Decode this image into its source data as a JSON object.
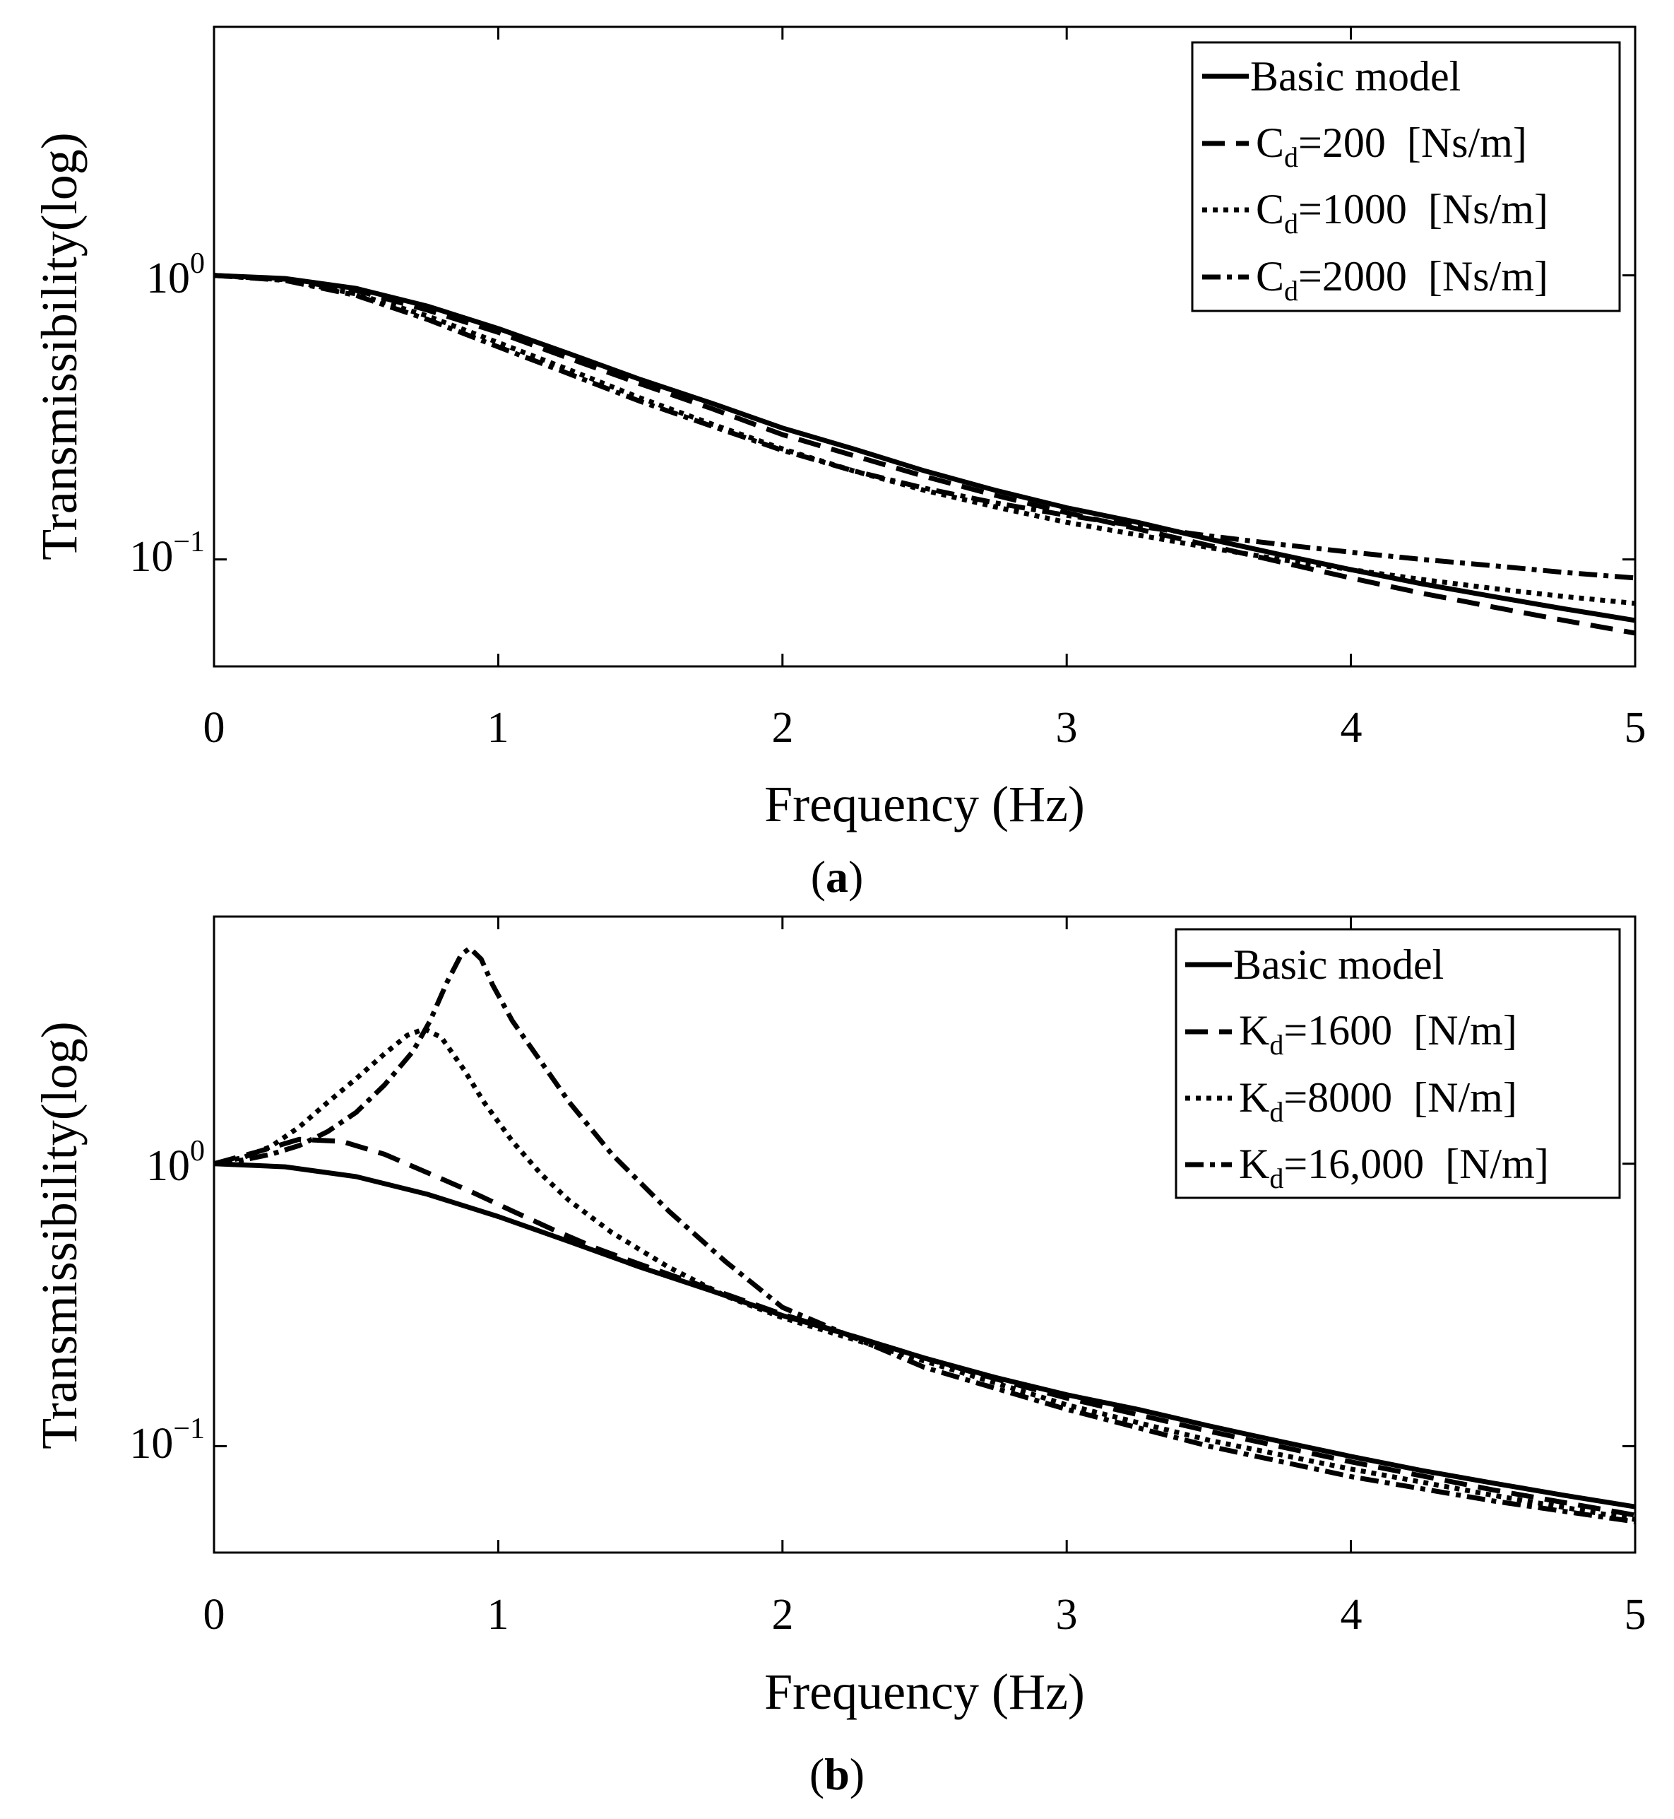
{
  "chart_data": [
    {
      "type": "line",
      "panel": "a",
      "caption": {
        "open": "(",
        "letter": "a",
        "close": ")"
      },
      "xlabel": "Frequency (Hz)",
      "ylabel": "Transmissibility(log)",
      "xlim": [
        0,
        5
      ],
      "ylim": [
        0.042,
        7.5
      ],
      "yscale": "log",
      "xticks": [
        0,
        1,
        2,
        3,
        4,
        5
      ],
      "xtick_labels": [
        "0",
        "1",
        "2",
        "3",
        "4",
        "5"
      ],
      "yticks": [
        {
          "value": 1,
          "base": "10",
          "exp": "0"
        },
        {
          "value": 0.1,
          "base": "10",
          "exp": "−1"
        }
      ],
      "legend_position": "top-right",
      "series": [
        {
          "name": "Basic model",
          "legend": {
            "text": "Basic model"
          },
          "style": "solid",
          "x": [
            0,
            0.25,
            0.5,
            0.75,
            1,
            1.25,
            1.5,
            1.75,
            2,
            2.25,
            2.5,
            2.75,
            3,
            3.25,
            3.5,
            3.75,
            4,
            4.25,
            4.5,
            4.75,
            5
          ],
          "y": [
            1.0,
            0.975,
            0.9,
            0.78,
            0.65,
            0.53,
            0.43,
            0.355,
            0.29,
            0.245,
            0.205,
            0.175,
            0.152,
            0.135,
            0.118,
            0.104,
            0.092,
            0.082,
            0.074,
            0.067,
            0.061
          ]
        },
        {
          "name": "Cd=200 [Ns/m]",
          "legend": {
            "sym": "C",
            "sub": "d",
            "rest": "=200  [Ns/m]"
          },
          "style": "dash",
          "x": [
            0,
            0.25,
            0.5,
            0.75,
            1,
            1.25,
            1.5,
            1.75,
            2,
            2.25,
            2.5,
            2.75,
            3,
            3.25,
            3.5,
            3.75,
            4,
            4.25,
            4.5,
            4.75,
            5
          ],
          "y": [
            1.0,
            0.97,
            0.885,
            0.755,
            0.63,
            0.51,
            0.415,
            0.34,
            0.275,
            0.232,
            0.196,
            0.168,
            0.146,
            0.128,
            0.112,
            0.098,
            0.086,
            0.076,
            0.068,
            0.061,
            0.055
          ]
        },
        {
          "name": "Cd=1000 [Ns/m]",
          "legend": {
            "sym": "C",
            "sub": "d",
            "rest": "=1000  [Ns/m]"
          },
          "style": "dot",
          "x": [
            0,
            0.25,
            0.5,
            0.75,
            1,
            1.25,
            1.5,
            1.75,
            2,
            2.25,
            2.5,
            2.75,
            3,
            3.25,
            3.5,
            3.75,
            4,
            4.25,
            4.5,
            4.75,
            5
          ],
          "y": [
            1.0,
            0.965,
            0.86,
            0.72,
            0.58,
            0.465,
            0.37,
            0.3,
            0.245,
            0.205,
            0.175,
            0.153,
            0.135,
            0.122,
            0.11,
            0.1,
            0.092,
            0.085,
            0.079,
            0.074,
            0.07
          ]
        },
        {
          "name": "Cd=2000 [Ns/m]",
          "legend": {
            "sym": "C",
            "sub": "d",
            "rest": "=2000  [Ns/m]"
          },
          "style": "dashdot",
          "x": [
            0,
            0.25,
            0.5,
            0.75,
            1,
            1.25,
            1.5,
            1.75,
            2,
            2.25,
            2.5,
            2.75,
            3,
            3.25,
            3.5,
            3.75,
            4,
            4.25,
            4.5,
            4.75,
            5
          ],
          "y": [
            1.0,
            0.96,
            0.85,
            0.7,
            0.56,
            0.45,
            0.36,
            0.295,
            0.242,
            0.205,
            0.178,
            0.158,
            0.143,
            0.131,
            0.121,
            0.113,
            0.106,
            0.1,
            0.095,
            0.09,
            0.086
          ]
        }
      ]
    },
    {
      "type": "line",
      "panel": "b",
      "caption": {
        "open": "(",
        "letter": "b",
        "close": ")"
      },
      "xlabel": "Frequency (Hz)",
      "ylabel": "Transmissibility(log)",
      "xlim": [
        0,
        5
      ],
      "ylim": [
        0.042,
        7.5
      ],
      "yscale": "log",
      "xticks": [
        0,
        1,
        2,
        3,
        4,
        5
      ],
      "xtick_labels": [
        "0",
        "1",
        "2",
        "3",
        "4",
        "5"
      ],
      "yticks": [
        {
          "value": 1,
          "base": "10",
          "exp": "0"
        },
        {
          "value": 0.1,
          "base": "10",
          "exp": "−1"
        }
      ],
      "legend_position": "top-right",
      "series": [
        {
          "name": "Basic model",
          "legend": {
            "text": "Basic model"
          },
          "style": "solid",
          "x": [
            0,
            0.25,
            0.5,
            0.75,
            1,
            1.25,
            1.5,
            1.75,
            2,
            2.25,
            2.5,
            2.75,
            3,
            3.25,
            3.5,
            3.75,
            4,
            4.25,
            4.5,
            4.75,
            5
          ],
          "y": [
            1.0,
            0.975,
            0.9,
            0.78,
            0.65,
            0.53,
            0.43,
            0.355,
            0.29,
            0.245,
            0.205,
            0.175,
            0.152,
            0.135,
            0.118,
            0.104,
            0.092,
            0.082,
            0.074,
            0.067,
            0.061
          ]
        },
        {
          "name": "Kd=1600 [N/m]",
          "legend": {
            "sym": "K",
            "sub": "d",
            "rest": "=1600  [N/m]"
          },
          "style": "dash",
          "x": [
            0,
            0.15,
            0.3,
            0.45,
            0.6,
            0.75,
            0.9,
            1.05,
            1.2,
            1.35,
            1.5,
            1.75,
            2,
            2.25,
            2.5,
            2.75,
            3,
            3.5,
            4,
            4.5,
            5
          ],
          "y": [
            1.0,
            1.1,
            1.22,
            1.2,
            1.08,
            0.93,
            0.8,
            0.68,
            0.58,
            0.5,
            0.44,
            0.36,
            0.293,
            0.245,
            0.205,
            0.173,
            0.148,
            0.113,
            0.088,
            0.07,
            0.057
          ]
        },
        {
          "name": "Kd=8000 [N/m]",
          "legend": {
            "sym": "K",
            "sub": "d",
            "rest": "=8000  [N/m]"
          },
          "style": "dot",
          "x": [
            0,
            0.1,
            0.2,
            0.3,
            0.4,
            0.5,
            0.6,
            0.68,
            0.74,
            0.8,
            0.88,
            0.95,
            1.05,
            1.15,
            1.25,
            1.4,
            1.6,
            1.8,
            2,
            2.5,
            3,
            3.5,
            4,
            4.5,
            5
          ],
          "y": [
            1.0,
            1.05,
            1.15,
            1.35,
            1.65,
            2.0,
            2.45,
            2.85,
            3.0,
            2.8,
            2.15,
            1.65,
            1.2,
            0.92,
            0.74,
            0.57,
            0.43,
            0.34,
            0.285,
            0.2,
            0.14,
            0.105,
            0.083,
            0.067,
            0.055
          ]
        },
        {
          "name": "Kd=16,000 [N/m]",
          "legend": {
            "sym": "K",
            "sub": "d",
            "rest": "=16,000  [N/m]"
          },
          "style": "dashdot",
          "x": [
            0,
            0.1,
            0.2,
            0.3,
            0.4,
            0.5,
            0.6,
            0.7,
            0.76,
            0.82,
            0.87,
            0.9,
            0.94,
            0.98,
            1.05,
            1.15,
            1.25,
            1.4,
            1.6,
            1.8,
            2,
            2.5,
            3,
            3.5,
            4,
            4.5,
            5
          ],
          "y": [
            1.0,
            1.03,
            1.08,
            1.16,
            1.3,
            1.52,
            1.9,
            2.5,
            3.2,
            4.4,
            5.5,
            5.8,
            5.3,
            4.3,
            3.2,
            2.3,
            1.65,
            1.08,
            0.68,
            0.45,
            0.31,
            0.19,
            0.135,
            0.1,
            0.078,
            0.064,
            0.054
          ]
        }
      ]
    }
  ]
}
